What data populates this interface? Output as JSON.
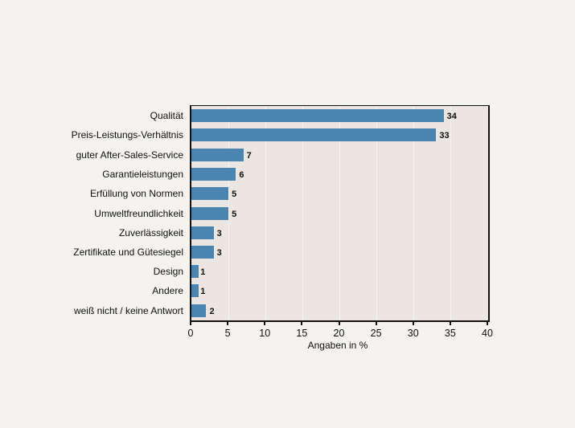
{
  "chart_data": {
    "type": "bar",
    "orientation": "horizontal",
    "title": "",
    "categories": [
      "Qualität",
      "Preis-Leistungs-Verhältnis",
      "guter After-Sales-Service",
      "Garantieleistungen",
      "Erfüllung von Normen",
      "Umweltfreundlichkeit",
      "Zuverlässigkeit",
      "Zertifikate und Gütesiegel",
      "Design",
      "Andere",
      "weiß nicht / keine Antwort"
    ],
    "values": [
      34,
      33,
      7,
      6,
      5,
      5,
      3,
      3,
      1,
      1,
      2
    ],
    "data_labels": [
      "34",
      "33",
      "7",
      "6",
      "5",
      "5",
      "3",
      "3",
      "1",
      "1",
      "2"
    ],
    "xlabel": "Angaben  in %",
    "ylabel": "",
    "xlim": [
      0,
      40
    ],
    "xticks": [
      "0",
      "5",
      "10",
      "15",
      "20",
      "25",
      "30",
      "35",
      "40"
    ],
    "grid": "vertical",
    "legend": "none",
    "colors": {
      "bar": "#4a84b0",
      "plot_bg": "#ebe6e1",
      "page_bg": "#f5f3ef",
      "grid": "#f7f5f2"
    }
  }
}
